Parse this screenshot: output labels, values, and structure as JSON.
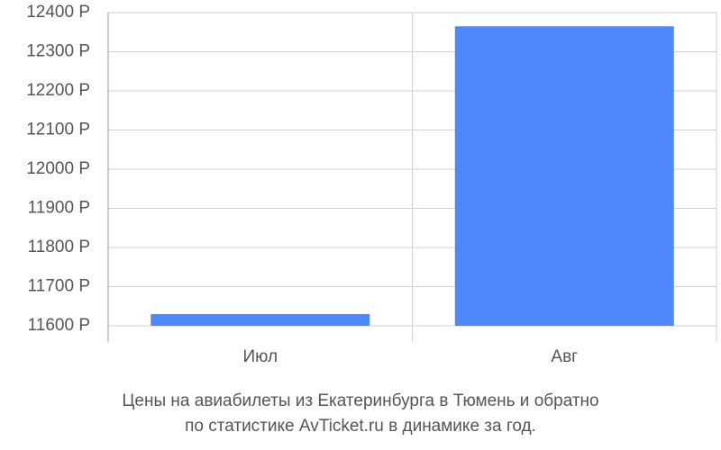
{
  "chart_data": {
    "type": "bar",
    "caption": [
      "Цены на авиабилеты из Екатеринбурга в Тюмень и обратно",
      "по статистике AvTicket.ru в динамике за год."
    ],
    "categories": [
      "Июл",
      "Авг"
    ],
    "values": [
      11630,
      12365
    ],
    "color": "#4d88fd",
    "ylim": [
      11600,
      12400
    ],
    "yticks": [
      {
        "value": 11600,
        "label": "11600 Р"
      },
      {
        "value": 11700,
        "label": "11700 Р"
      },
      {
        "value": 11800,
        "label": "11800 Р"
      },
      {
        "value": 11900,
        "label": "11900 Р"
      },
      {
        "value": 12000,
        "label": "12000 Р"
      },
      {
        "value": 12100,
        "label": "12100 Р"
      },
      {
        "value": 12200,
        "label": "12200 Р"
      },
      {
        "value": 12300,
        "label": "12300 Р"
      },
      {
        "value": 12400,
        "label": "12400 Р"
      }
    ],
    "grid": true
  }
}
